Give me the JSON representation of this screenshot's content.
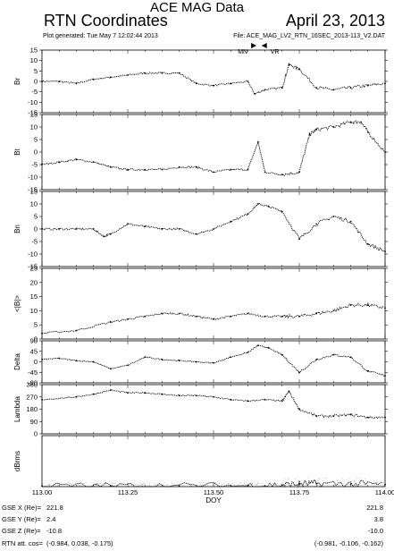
{
  "header": {
    "title": "ACE MAG Data",
    "subtitle_left": "RTN Coordinates",
    "subtitle_right": "April 23, 2013",
    "generated": "Plot generated: Tue May 7 12:02:44 2013",
    "file": "File: ACE_MAG_LV2_RTN_16SEC_2013-113_V2.DAT"
  },
  "markers": [
    {
      "label": "MN",
      "x": 113.62
    },
    {
      "label": "VR",
      "x": 113.645
    }
  ],
  "chart_data": {
    "type": "scatter",
    "xlabel": "DOY",
    "xlim": [
      113.0,
      114.0
    ],
    "xticks": [
      "113.00",
      "113.25",
      "113.50",
      "113.75",
      "114.00"
    ],
    "panels": [
      {
        "name": "Br",
        "ylim": [
          -15,
          15
        ],
        "yticks": [
          15,
          10,
          5,
          0,
          -5,
          -10,
          -15
        ],
        "x": [
          113.0,
          113.05,
          113.1,
          113.15,
          113.2,
          113.25,
          113.3,
          113.35,
          113.4,
          113.45,
          113.5,
          113.55,
          113.6,
          113.62,
          113.65,
          113.7,
          113.72,
          113.75,
          113.8,
          113.85,
          113.9,
          113.95,
          114.0
        ],
        "y": [
          0,
          0,
          -1,
          1,
          2,
          3,
          4,
          4,
          4,
          -1,
          -2,
          -1,
          0,
          -6,
          -4,
          -3,
          8,
          6,
          -3,
          -4,
          -3,
          -2,
          -1
        ]
      },
      {
        "name": "Bt",
        "ylim": [
          -15,
          15
        ],
        "yticks": [
          15,
          10,
          5,
          0,
          -5,
          -10,
          -15
        ],
        "x": [
          113.0,
          113.05,
          113.1,
          113.15,
          113.2,
          113.25,
          113.3,
          113.35,
          113.4,
          113.45,
          113.5,
          113.55,
          113.6,
          113.63,
          113.65,
          113.7,
          113.75,
          113.78,
          113.8,
          113.85,
          113.9,
          113.93,
          113.95,
          114.0
        ],
        "y": [
          -5,
          -4,
          -3,
          -4,
          -6,
          -7,
          -7,
          -7,
          -6,
          -6,
          -8,
          -7,
          -7,
          4,
          -8,
          -9,
          -8,
          7,
          9,
          10,
          12,
          12,
          8,
          0
        ]
      },
      {
        "name": "Bn",
        "ylim": [
          -15,
          15
        ],
        "yticks": [
          15,
          10,
          5,
          0,
          -5,
          -10,
          -15
        ],
        "x": [
          113.0,
          113.05,
          113.1,
          113.15,
          113.18,
          113.2,
          113.25,
          113.3,
          113.35,
          113.4,
          113.45,
          113.5,
          113.55,
          113.6,
          113.63,
          113.66,
          113.7,
          113.75,
          113.8,
          113.85,
          113.9,
          113.95,
          114.0
        ],
        "y": [
          0,
          0,
          0,
          0,
          -3,
          -2,
          2,
          1,
          0,
          0,
          -2,
          0,
          3,
          6,
          10,
          9,
          7,
          -4,
          2,
          5,
          3,
          -6,
          -9
        ]
      },
      {
        "name": "<|B|>",
        "ylim": [
          0,
          25
        ],
        "yticks": [
          25,
          20,
          15,
          10,
          5,
          0
        ],
        "x": [
          113.0,
          113.1,
          113.2,
          113.25,
          113.3,
          113.35,
          113.4,
          113.45,
          113.5,
          113.55,
          113.6,
          113.65,
          113.7,
          113.75,
          113.8,
          113.85,
          113.9,
          113.95,
          114.0
        ],
        "y": [
          2,
          3,
          6,
          7,
          8,
          9,
          9,
          8,
          7,
          8,
          9,
          8,
          8,
          8,
          9,
          10,
          12,
          12,
          11
        ]
      },
      {
        "name": "Delta",
        "ylim": [
          -90,
          90
        ],
        "yticks": [
          90,
          45,
          0,
          -45,
          -90
        ],
        "x": [
          113.0,
          113.05,
          113.1,
          113.15,
          113.2,
          113.25,
          113.3,
          113.35,
          113.4,
          113.45,
          113.5,
          113.55,
          113.6,
          113.63,
          113.66,
          113.7,
          113.75,
          113.8,
          113.85,
          113.9,
          113.95,
          114.0
        ],
        "y": [
          10,
          15,
          5,
          0,
          -30,
          -15,
          20,
          10,
          5,
          0,
          -5,
          20,
          40,
          70,
          60,
          30,
          -45,
          10,
          30,
          20,
          -40,
          -60
        ]
      },
      {
        "name": "Lambda",
        "ylim": [
          0,
          360
        ],
        "yticks": [
          360,
          270,
          180,
          90,
          0
        ],
        "x": [
          113.0,
          113.1,
          113.15,
          113.2,
          113.25,
          113.3,
          113.35,
          113.4,
          113.45,
          113.5,
          113.55,
          113.6,
          113.65,
          113.7,
          113.72,
          113.75,
          113.8,
          113.85,
          113.9,
          113.95,
          114.0
        ],
        "y": [
          250,
          270,
          290,
          320,
          300,
          300,
          290,
          280,
          280,
          270,
          250,
          240,
          250,
          240,
          310,
          180,
          130,
          130,
          140,
          120,
          120
        ]
      },
      {
        "name": "dBrms",
        "ylim": [
          0,
          10
        ],
        "yticks": [],
        "x": [
          113.0,
          113.2,
          113.4,
          113.6,
          113.7,
          113.75,
          113.8,
          113.9,
          114.0
        ],
        "y": [
          0.1,
          0.1,
          0.1,
          0.2,
          0.3,
          0.5,
          0.6,
          0.5,
          0.4
        ]
      }
    ]
  },
  "footer": {
    "rows": [
      {
        "label": "GSE X (Re)=",
        "left": "221.8",
        "right": "221.8"
      },
      {
        "label": "GSE Y (Re)=",
        "left": "2.4",
        "right": "3.8"
      },
      {
        "label": "GSE Z (Re)=",
        "left": "-10.8",
        "right": "-10.0"
      },
      {
        "label": "RTN att. cos=",
        "left": "(-0.984, 0.038, -0.175)",
        "right": "(-0.981, -0.106, -0.162)"
      }
    ]
  }
}
